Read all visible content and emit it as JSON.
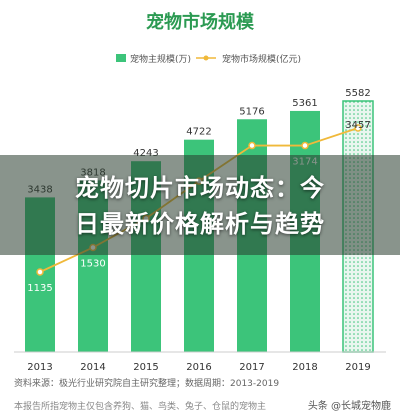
{
  "chart_data": {
    "type": "bar",
    "title": "宠物市场规模",
    "categories": [
      "2013",
      "2014",
      "2015",
      "2016",
      "2017",
      "2018",
      "2019"
    ],
    "series": [
      {
        "name": "宠物主规模(万)",
        "kind": "bar",
        "color": "#3cc47a",
        "values": [
          3438,
          3818,
          4243,
          4722,
          5176,
          5361,
          5582
        ],
        "value_labels": [
          "3438",
          "3818",
          "4243",
          "4722",
          "5176",
          "5361",
          "5582"
        ],
        "forecast_index": 6
      },
      {
        "name": "宠物市场规模(亿元)",
        "kind": "line",
        "color": "#f0b93a",
        "values": [
          1135,
          1530,
          2000,
          2600,
          3174,
          3174,
          3457
        ],
        "value_labels": [
          "1135",
          "1530",
          "",
          "",
          "",
          "3174",
          "3457"
        ]
      }
    ],
    "legend": "top-center",
    "grid": false
  },
  "overlay": {
    "headline_line1": "宠物切片市场动态：今",
    "headline_line2": "日最新价格解析与趋势"
  },
  "source_text": "资料来源：极光行业研究院自主研究整理；数据周期：2013-2019",
  "footnote_text": "本报告所指宠物主仅包含养狗、猫、鸟类、兔子、仓鼠的宠物主",
  "watermark_text": "头条 @长城宠物鹿"
}
